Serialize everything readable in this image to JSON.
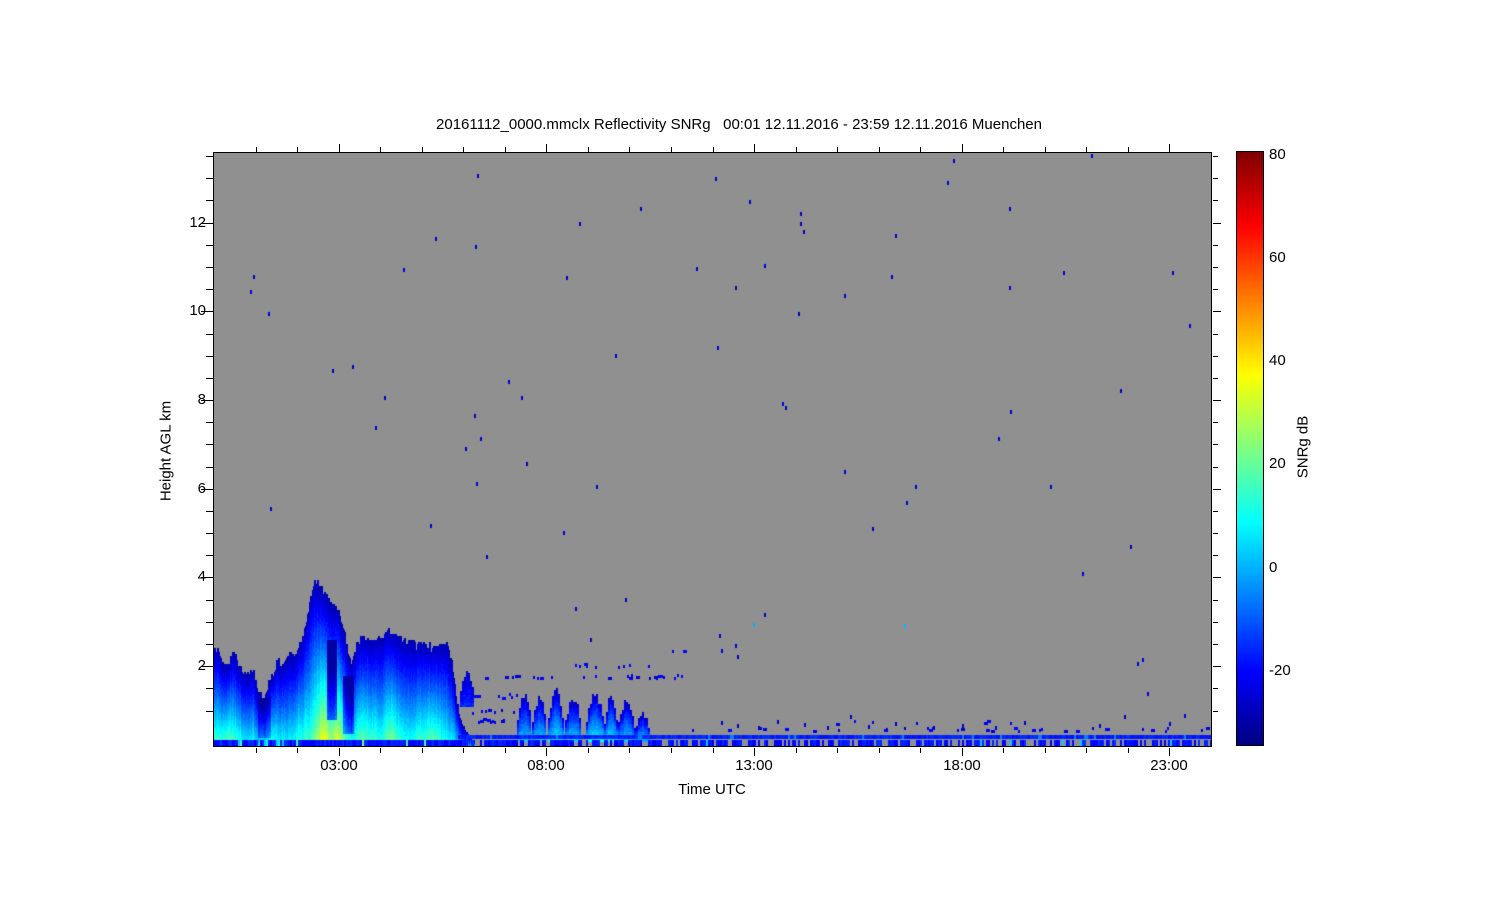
{
  "title": "20161112_0000.mmclx Reflectivity SNRg   00:01 12.11.2016 - 23:59 12.11.2016 Muenchen",
  "colors": {
    "plot_bg": "#909090",
    "frame": "#000000",
    "page_bg": "#ffffff",
    "text": "#000000"
  },
  "axes": {
    "x": {
      "label": "Time UTC",
      "range_hours": [
        0,
        24
      ],
      "major_ticks": [
        {
          "v": 3,
          "label": "03:00"
        },
        {
          "v": 8,
          "label": "08:00"
        },
        {
          "v": 13,
          "label": "13:00"
        },
        {
          "v": 18,
          "label": "18:00"
        },
        {
          "v": 23,
          "label": "23:00"
        }
      ],
      "minor_step": 1
    },
    "y": {
      "label": "Height AGL km",
      "range_km": [
        0.2,
        13.57
      ],
      "major_ticks": [
        {
          "v": 2,
          "label": "2"
        },
        {
          "v": 4,
          "label": "4"
        },
        {
          "v": 6,
          "label": "6"
        },
        {
          "v": 8,
          "label": "8"
        },
        {
          "v": 10,
          "label": "10"
        },
        {
          "v": 12,
          "label": "12"
        }
      ],
      "minor_step": 0.5
    }
  },
  "colorbar": {
    "label": "SNRg dB",
    "range": [
      -35,
      80
    ],
    "colormap": "jet",
    "ticks": [
      {
        "v": 80,
        "label": "80"
      },
      {
        "v": 60,
        "label": "60"
      },
      {
        "v": 40,
        "label": "40"
      },
      {
        "v": 20,
        "label": "20"
      },
      {
        "v": 0,
        "label": "0"
      },
      {
        "v": -20,
        "label": "-20"
      }
    ]
  },
  "chart_data": {
    "type": "heatmap",
    "title": "20161112_0000.mmclx Reflectivity SNRg   00:01 12.11.2016 - 23:59 12.11.2016 Muenchen",
    "xlabel": "Time UTC",
    "ylabel": "Height AGL km",
    "value_label": "SNRg dB",
    "value_range": [
      -35,
      80
    ],
    "x_range_hours": [
      0,
      24
    ],
    "y_range_km": [
      0.2,
      13.57
    ],
    "noise_seed": 20161112,
    "cloud_top_profile": {
      "t": [
        0.0,
        0.15,
        0.3,
        0.45,
        0.6,
        0.75,
        0.9,
        1.05,
        1.2,
        1.35,
        1.5,
        1.65,
        1.8,
        1.95,
        2.1,
        2.25,
        2.35,
        2.45,
        2.55,
        2.7,
        2.85,
        3.0,
        3.1,
        3.2,
        3.3,
        3.4,
        3.5,
        3.65,
        3.8,
        3.95,
        4.1,
        4.25,
        4.4,
        4.55,
        4.7,
        4.85,
        5.0,
        5.15,
        5.3,
        5.45,
        5.6,
        5.7,
        5.8,
        5.9,
        6.0,
        6.1,
        6.25
      ],
      "top": [
        2.45,
        2.2,
        1.95,
        2.3,
        2.0,
        1.75,
        1.95,
        1.5,
        1.3,
        1.75,
        2.1,
        2.05,
        2.3,
        2.35,
        2.55,
        3.2,
        3.75,
        3.92,
        3.8,
        3.55,
        3.35,
        3.15,
        2.85,
        2.35,
        1.95,
        2.45,
        2.6,
        2.65,
        2.55,
        2.6,
        2.75,
        2.8,
        2.7,
        2.55,
        2.6,
        2.45,
        2.5,
        2.5,
        2.35,
        2.55,
        2.45,
        2.2,
        1.4,
        0.9,
        0.6,
        0.4,
        0.3
      ]
    },
    "surface_snr_profile": {
      "t": [
        0.0,
        0.3,
        0.5,
        0.8,
        1.1,
        1.4,
        1.7,
        2.0,
        2.3,
        2.5,
        2.65,
        2.8,
        2.95,
        3.1,
        3.3,
        3.5,
        3.7,
        3.9,
        4.1,
        4.3,
        4.5,
        4.7,
        4.9,
        5.1,
        5.3,
        5.5,
        5.7,
        5.9,
        6.1
      ],
      "s0": [
        18,
        24,
        20,
        16,
        12,
        14,
        13,
        16,
        20,
        34,
        44,
        30,
        42,
        30,
        18,
        22,
        20,
        18,
        20,
        26,
        18,
        16,
        18,
        20,
        24,
        18,
        14,
        8,
        4
      ]
    },
    "dark_pockets": [
      {
        "t0": 2.7,
        "t1": 2.95,
        "h0": 0.8,
        "h1": 2.6,
        "dv": -26
      },
      {
        "t0": 3.1,
        "t1": 3.35,
        "h0": 0.5,
        "h1": 1.8,
        "dv": -18
      },
      {
        "t0": 1.05,
        "t1": 1.35,
        "h0": 0.4,
        "h1": 1.3,
        "dv": -8
      }
    ],
    "low_cloud_blobs": [
      {
        "t0": 5.92,
        "t1": 6.22,
        "base": 1.25,
        "top": 1.9,
        "s0": -16
      },
      {
        "t0": 7.3,
        "t1": 7.62,
        "base": 0.45,
        "top": 1.35,
        "s0": 2
      },
      {
        "t0": 7.66,
        "t1": 7.98,
        "base": 0.45,
        "top": 1.3,
        "s0": 4
      },
      {
        "t0": 8.03,
        "t1": 8.38,
        "base": 0.45,
        "top": 1.45,
        "s0": 6
      },
      {
        "t0": 8.45,
        "t1": 8.82,
        "base": 0.45,
        "top": 1.3,
        "s0": 4
      },
      {
        "t0": 8.95,
        "t1": 9.35,
        "base": 0.45,
        "top": 1.4,
        "s0": 8
      },
      {
        "t0": 9.38,
        "t1": 9.68,
        "base": 0.45,
        "top": 1.35,
        "s0": 6
      },
      {
        "t0": 9.72,
        "t1": 10.08,
        "base": 0.45,
        "top": 1.2,
        "s0": 2
      },
      {
        "t0": 10.12,
        "t1": 10.48,
        "base": 0.45,
        "top": 0.9,
        "s0": 0
      }
    ],
    "dotted_rows": [
      {
        "h": 1.78,
        "t0": 6.3,
        "t1": 11.35,
        "density": 0.3
      },
      {
        "h": 2.03,
        "t0": 8.35,
        "t1": 11.25,
        "density": 0.2
      },
      {
        "h": 1.35,
        "t0": 5.95,
        "t1": 7.4,
        "density": 0.4
      },
      {
        "h": 1.0,
        "t0": 6.2,
        "t1": 7.6,
        "density": 0.3
      },
      {
        "h": 0.8,
        "t0": 6.25,
        "t1": 7.0,
        "density": 0.6
      },
      {
        "h": 2.35,
        "t0": 10.2,
        "t1": 11.45,
        "density": 0.22
      },
      {
        "h": 0.6,
        "t0": 11.5,
        "t1": 23.9,
        "density": 0.1
      },
      {
        "h": 0.75,
        "t0": 12.0,
        "t1": 23.9,
        "density": 0.06
      }
    ],
    "ground_stripe": {
      "solid_row": {
        "h0": 0.36,
        "h1": 0.445,
        "t0": 5.88,
        "t1": 24,
        "snr": -17
      },
      "dashed_row": {
        "h0": 0.2,
        "h1": 0.33,
        "t0": 0,
        "t1": 24,
        "snr": -23,
        "density_cloudy": 0.92,
        "density_clear": 0.62,
        "cyan_fraction": 0.02
      }
    },
    "specks": [
      [
        6.34,
        13.05
      ],
      [
        10.25,
        12.3
      ],
      [
        8.78,
        11.97
      ],
      [
        5.33,
        11.63
      ],
      [
        6.28,
        11.45
      ],
      [
        4.54,
        10.94
      ],
      [
        0.94,
        10.78
      ],
      [
        8.48,
        10.76
      ],
      [
        11.6,
        10.96
      ],
      [
        0.86,
        10.44
      ],
      [
        1.3,
        9.93
      ],
      [
        9.66,
        9.0
      ],
      [
        3.32,
        8.75
      ],
      [
        2.84,
        8.66
      ],
      [
        7.08,
        8.41
      ],
      [
        4.1,
        8.05
      ],
      [
        7.38,
        8.05
      ],
      [
        6.27,
        7.63
      ],
      [
        3.87,
        7.38
      ],
      [
        6.41,
        7.13
      ],
      [
        6.05,
        6.9
      ],
      [
        17.8,
        13.4
      ],
      [
        21.1,
        13.5
      ],
      [
        12.05,
        12.98
      ],
      [
        17.64,
        12.9
      ],
      [
        12.87,
        12.47
      ],
      [
        19.13,
        12.3
      ],
      [
        14.1,
        12.2
      ],
      [
        14.1,
        11.97
      ],
      [
        14.19,
        11.8
      ],
      [
        16.4,
        11.7
      ],
      [
        13.25,
        11.03
      ],
      [
        20.43,
        10.87
      ],
      [
        23.07,
        10.87
      ],
      [
        16.3,
        10.78
      ],
      [
        12.53,
        10.53
      ],
      [
        19.13,
        10.53
      ],
      [
        15.17,
        10.35
      ],
      [
        14.05,
        9.95
      ],
      [
        23.48,
        9.68
      ],
      [
        12.1,
        9.18
      ],
      [
        21.82,
        8.21
      ],
      [
        13.68,
        7.9
      ],
      [
        13.74,
        7.82
      ],
      [
        19.16,
        7.74
      ],
      [
        18.87,
        7.13
      ],
      [
        15.17,
        6.37
      ],
      [
        16.88,
        6.03
      ],
      [
        20.12,
        6.03
      ],
      [
        16.66,
        5.67
      ],
      [
        15.84,
        5.1
      ],
      [
        22.06,
        4.68
      ],
      [
        20.9,
        4.07
      ],
      [
        13.25,
        3.15
      ],
      [
        12.97,
        2.92,
        0
      ],
      [
        12.15,
        2.68
      ],
      [
        12.55,
        2.45
      ],
      [
        16.6,
        2.9,
        0
      ],
      [
        22.33,
        2.13
      ],
      [
        22.23,
        2.05
      ],
      [
        22.45,
        1.37
      ],
      [
        23.35,
        0.87
      ],
      [
        12.2,
        0.72
      ],
      [
        12.6,
        0.66
      ],
      [
        13.1,
        0.6
      ],
      [
        13.55,
        0.75
      ],
      [
        14.2,
        0.68
      ],
      [
        14.75,
        0.6
      ],
      [
        15.3,
        0.85
      ],
      [
        15.75,
        0.62
      ],
      [
        16.4,
        0.7
      ],
      [
        17.3,
        0.6
      ],
      [
        18.0,
        0.65
      ],
      [
        18.8,
        0.6
      ],
      [
        19.5,
        0.72
      ],
      [
        21.3,
        0.65
      ],
      [
        21.9,
        0.85
      ],
      [
        23.0,
        0.7
      ],
      [
        6.3,
        6.1
      ],
      [
        7.5,
        6.55
      ],
      [
        8.4,
        5.0
      ],
      [
        9.2,
        6.05
      ],
      [
        8.7,
        3.3
      ],
      [
        9.05,
        2.6
      ],
      [
        12.2,
        2.35
      ],
      [
        12.6,
        2.2
      ],
      [
        6.55,
        4.45
      ],
      [
        5.2,
        5.15
      ],
      [
        1.35,
        5.55
      ],
      [
        9.9,
        3.5
      ]
    ],
    "speck_default_snr": -26
  }
}
